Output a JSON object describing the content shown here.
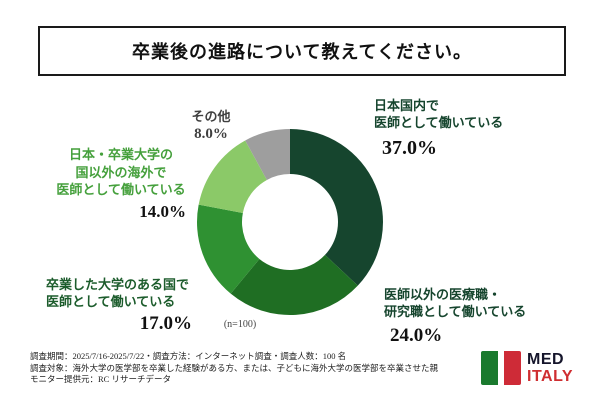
{
  "title": {
    "text": "卒業後の進路について教えてください。"
  },
  "chart_data": {
    "type": "pie",
    "donut": true,
    "title": "卒業後の進路について教えてください。",
    "center_note": "(n=100)",
    "categories": [
      "日本国内で医師として働いている",
      "医師以外の医療職・研究職として働いている",
      "卒業した大学のある国で医師として働いている",
      "日本・卒業大学の国以外の海外で医師として働いている",
      "その他"
    ],
    "values": [
      37.0,
      24.0,
      17.0,
      14.0,
      8.0
    ],
    "colors": [
      "#16452e",
      "#1f6e23",
      "#2f9132",
      "#8bc968",
      "#9e9e9e"
    ],
    "start_angle_deg": -90,
    "direction": "clockwise",
    "legend_position": "around-labels"
  },
  "labels": {
    "japan_doctor": {
      "lines": [
        "日本国内で",
        "医師として働いている"
      ],
      "value": "37.0%",
      "color": "#16452e"
    },
    "non_doctor": {
      "lines": [
        "医師以外の医療職・",
        "研究職として働いている"
      ],
      "value": "24.0%",
      "color": "#16452e"
    },
    "grad_country": {
      "lines": [
        "卒業した大学のある国で",
        "医師として働いている"
      ],
      "value": "17.0%",
      "color": "#1c5c2c"
    },
    "overseas_other": {
      "lines": [
        "日本・卒業大学の",
        "国以外の海外で",
        "医師として働いている"
      ],
      "value": "14.0%",
      "color": "#45a03c"
    },
    "other": {
      "lines": [
        "その他"
      ],
      "value": "8.0%",
      "color": "#3f3f3f"
    }
  },
  "footnotes": [
    "調査期間：2025/7/16-2025/7/22・調査方法：インターネット調査・調査人数：100 名",
    "調査対象：海外大学の医学部を卒業した経験がある方、または、子どもに海外大学の医学部を卒業させた親",
    "モニター提供元：RC リサーチデータ"
  ],
  "logo": {
    "line1": "MED",
    "line2": "ITALY"
  }
}
